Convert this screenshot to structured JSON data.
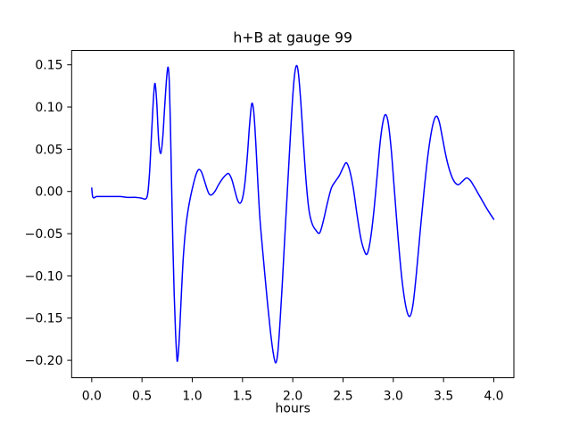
{
  "figure": {
    "background_color": "#ffffff",
    "text_color": "#000000"
  },
  "chart_data": {
    "type": "line",
    "title": "h+B at gauge 99",
    "xlabel": "hours",
    "ylabel": "",
    "xlim": [
      -0.2,
      4.2
    ],
    "ylim": [
      -0.2206,
      0.1671
    ],
    "grid": false,
    "legend_position": "none",
    "x_ticks": {
      "values": [
        0.0,
        0.5,
        1.0,
        1.5,
        2.0,
        2.5,
        3.0,
        3.5,
        4.0
      ],
      "labels": [
        "0.0",
        "0.5",
        "1.0",
        "1.5",
        "2.0",
        "2.5",
        "3.0",
        "3.5",
        "4.0"
      ]
    },
    "y_ticks": {
      "values": [
        0.15,
        0.1,
        0.05,
        0.0,
        -0.05,
        -0.1,
        -0.15,
        -0.2
      ],
      "labels": [
        "0.15",
        "0.10",
        "0.05",
        "0.00",
        "−0.05",
        "−0.10",
        "−0.15",
        "−0.20"
      ]
    },
    "series": [
      {
        "name": "h+B at gauge 99",
        "color": "#0000ff",
        "line_width": 1.5,
        "points": [
          [
            0.0,
            0.004
          ],
          [
            0.012,
            -0.007
          ],
          [
            0.05,
            -0.006
          ],
          [
            0.12,
            -0.006
          ],
          [
            0.2,
            -0.006
          ],
          [
            0.28,
            -0.006
          ],
          [
            0.36,
            -0.007
          ],
          [
            0.44,
            -0.007
          ],
          [
            0.5,
            -0.008
          ],
          [
            0.53,
            -0.009
          ],
          [
            0.555,
            -0.004
          ],
          [
            0.575,
            0.022
          ],
          [
            0.595,
            0.068
          ],
          [
            0.615,
            0.112
          ],
          [
            0.63,
            0.128
          ],
          [
            0.646,
            0.107
          ],
          [
            0.666,
            0.06
          ],
          [
            0.687,
            0.045
          ],
          [
            0.706,
            0.063
          ],
          [
            0.726,
            0.101
          ],
          [
            0.746,
            0.136
          ],
          [
            0.76,
            0.147
          ],
          [
            0.772,
            0.128
          ],
          [
            0.784,
            0.072
          ],
          [
            0.795,
            0.005
          ],
          [
            0.807,
            -0.062
          ],
          [
            0.82,
            -0.121
          ],
          [
            0.834,
            -0.168
          ],
          [
            0.846,
            -0.195
          ],
          [
            0.852,
            -0.201
          ],
          [
            0.862,
            -0.191
          ],
          [
            0.876,
            -0.162
          ],
          [
            0.892,
            -0.121
          ],
          [
            0.912,
            -0.076
          ],
          [
            0.936,
            -0.042
          ],
          [
            0.96,
            -0.021
          ],
          [
            0.985,
            -0.005
          ],
          [
            1.012,
            0.009
          ],
          [
            1.04,
            0.021
          ],
          [
            1.066,
            0.026
          ],
          [
            1.092,
            0.023
          ],
          [
            1.118,
            0.014
          ],
          [
            1.144,
            0.004
          ],
          [
            1.168,
            -0.003
          ],
          [
            1.192,
            -0.004
          ],
          [
            1.225,
            0.0
          ],
          [
            1.262,
            0.008
          ],
          [
            1.3,
            0.015
          ],
          [
            1.338,
            0.02
          ],
          [
            1.364,
            0.021
          ],
          [
            1.394,
            0.014
          ],
          [
            1.424,
            0.001
          ],
          [
            1.45,
            -0.01
          ],
          [
            1.475,
            -0.014
          ],
          [
            1.5,
            -0.008
          ],
          [
            1.524,
            0.01
          ],
          [
            1.548,
            0.042
          ],
          [
            1.571,
            0.08
          ],
          [
            1.592,
            0.104
          ],
          [
            1.612,
            0.094
          ],
          [
            1.632,
            0.058
          ],
          [
            1.652,
            0.012
          ],
          [
            1.672,
            -0.03
          ],
          [
            1.696,
            -0.064
          ],
          [
            1.722,
            -0.098
          ],
          [
            1.75,
            -0.134
          ],
          [
            1.778,
            -0.166
          ],
          [
            1.804,
            -0.19
          ],
          [
            1.828,
            -0.203
          ],
          [
            1.85,
            -0.192
          ],
          [
            1.872,
            -0.157
          ],
          [
            1.896,
            -0.109
          ],
          [
            1.92,
            -0.055
          ],
          [
            1.945,
            -0.002
          ],
          [
            1.97,
            0.052
          ],
          [
            1.995,
            0.104
          ],
          [
            2.016,
            0.136
          ],
          [
            2.036,
            0.149
          ],
          [
            2.056,
            0.14
          ],
          [
            2.08,
            0.106
          ],
          [
            2.106,
            0.058
          ],
          [
            2.132,
            0.013
          ],
          [
            2.16,
            -0.021
          ],
          [
            2.192,
            -0.038
          ],
          [
            2.23,
            -0.046
          ],
          [
            2.268,
            -0.049
          ],
          [
            2.306,
            -0.034
          ],
          [
            2.344,
            -0.014
          ],
          [
            2.384,
            0.004
          ],
          [
            2.424,
            0.012
          ],
          [
            2.464,
            0.019
          ],
          [
            2.504,
            0.029
          ],
          [
            2.534,
            0.034
          ],
          [
            2.566,
            0.025
          ],
          [
            2.602,
            0.004
          ],
          [
            2.64,
            -0.028
          ],
          [
            2.678,
            -0.056
          ],
          [
            2.714,
            -0.071
          ],
          [
            2.74,
            -0.074
          ],
          [
            2.77,
            -0.059
          ],
          [
            2.802,
            -0.029
          ],
          [
            2.836,
            0.014
          ],
          [
            2.87,
            0.059
          ],
          [
            2.9,
            0.084
          ],
          [
            2.925,
            0.091
          ],
          [
            2.95,
            0.081
          ],
          [
            2.98,
            0.049
          ],
          [
            3.012,
            0.0
          ],
          [
            3.05,
            -0.058
          ],
          [
            3.088,
            -0.106
          ],
          [
            3.128,
            -0.138
          ],
          [
            3.164,
            -0.148
          ],
          [
            3.196,
            -0.134
          ],
          [
            3.23,
            -0.097
          ],
          [
            3.268,
            -0.047
          ],
          [
            3.308,
            0.003
          ],
          [
            3.348,
            0.046
          ],
          [
            3.388,
            0.076
          ],
          [
            3.424,
            0.089
          ],
          [
            3.456,
            0.083
          ],
          [
            3.49,
            0.063
          ],
          [
            3.524,
            0.042
          ],
          [
            3.558,
            0.026
          ],
          [
            3.6,
            0.013
          ],
          [
            3.644,
            0.008
          ],
          [
            3.688,
            0.012
          ],
          [
            3.728,
            0.016
          ],
          [
            3.766,
            0.013
          ],
          [
            3.804,
            0.006
          ],
          [
            3.852,
            -0.004
          ],
          [
            3.9,
            -0.014
          ],
          [
            3.95,
            -0.024
          ],
          [
            4.0,
            -0.033
          ]
        ]
      }
    ]
  }
}
